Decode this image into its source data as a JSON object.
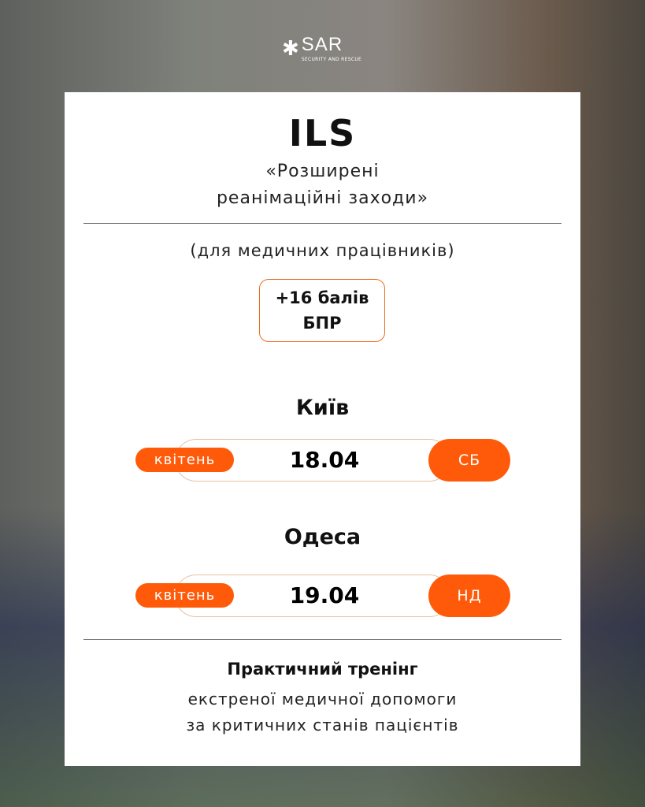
{
  "logo": {
    "name": "SAR",
    "tagline": "SECURITY AND RESCUE"
  },
  "colors": {
    "accent": "#ff5a0a",
    "outline": "#e9c1a5"
  },
  "title": "ILS",
  "subtitle_line1": "«Розширені",
  "subtitle_line2": "реанімаційні заходи»",
  "audience": "(для медичних працівників)",
  "badge": {
    "line1": "+16 балів",
    "line2": "БПР"
  },
  "sessions": [
    {
      "city": "Київ",
      "month": "квітень",
      "date": "18.04",
      "day": "СБ"
    },
    {
      "city": "Одеса",
      "month": "квітень",
      "date": "19.04",
      "day": "НД"
    }
  ],
  "footer": {
    "line1": "Практичний тренінг",
    "line2": "екстреної медичної допомоги",
    "line3": "за критичних станів пацієнтів"
  }
}
